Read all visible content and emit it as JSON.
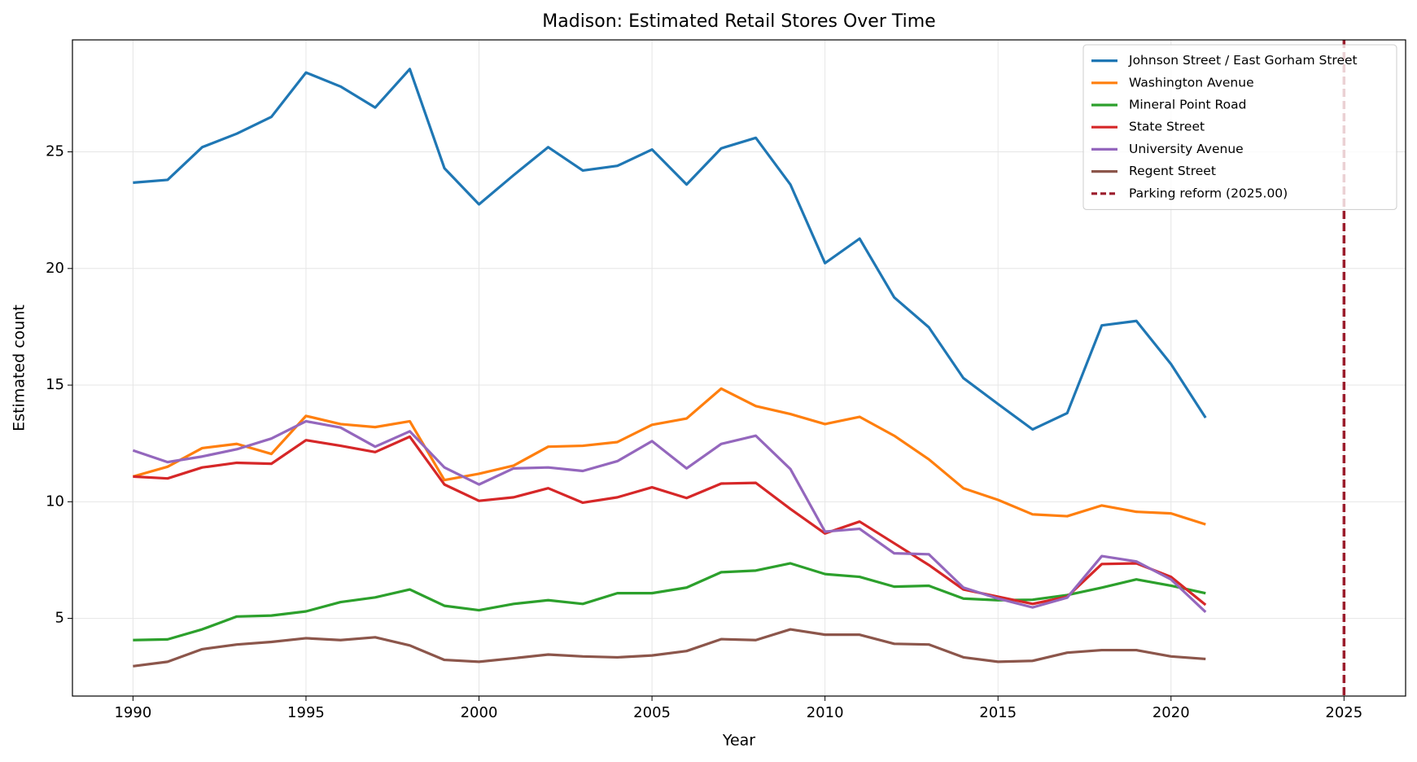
{
  "chart_data": {
    "type": "line",
    "title": "Madison: Estimated Retail Stores Over Time",
    "x_label": "Year",
    "y_label": "Estimated count",
    "x": [
      1990,
      1991,
      1992,
      1993,
      1994,
      1995,
      1996,
      1997,
      1998,
      1999,
      2000,
      2001,
      2002,
      2003,
      2004,
      2005,
      2006,
      2007,
      2008,
      2009,
      2010,
      2011,
      2012,
      2013,
      2014,
      2015,
      2016,
      2017,
      2018,
      2019,
      2020,
      2021
    ],
    "series": [
      {
        "name": "Johnson Street / East Gorham Street",
        "color": "#1f77b4",
        "values": [
          23.68,
          23.8,
          25.2,
          25.78,
          26.5,
          28.4,
          27.8,
          26.9,
          28.55,
          24.3,
          22.75,
          24.0,
          25.2,
          24.2,
          24.4,
          25.1,
          23.6,
          25.15,
          25.6,
          23.6,
          20.23,
          21.28,
          18.76,
          17.48,
          15.3,
          14.19,
          13.1,
          13.8,
          17.56,
          17.75,
          15.9,
          13.6
        ]
      },
      {
        "name": "Washington Avenue",
        "color": "#ff7f0e",
        "values": [
          11.08,
          11.5,
          12.3,
          12.48,
          12.05,
          13.68,
          13.33,
          13.2,
          13.45,
          10.93,
          11.2,
          11.55,
          12.36,
          12.4,
          12.56,
          13.3,
          13.57,
          14.85,
          14.1,
          13.76,
          13.33,
          13.64,
          12.83,
          11.82,
          10.58,
          10.08,
          9.46,
          9.38,
          9.84,
          9.57,
          9.5,
          9.03
        ]
      },
      {
        "name": "Mineral Point Road",
        "color": "#2ca02c",
        "values": [
          4.07,
          4.1,
          4.53,
          5.08,
          5.12,
          5.3,
          5.7,
          5.9,
          6.24,
          5.54,
          5.35,
          5.62,
          5.78,
          5.62,
          6.08,
          6.08,
          6.32,
          6.98,
          7.05,
          7.36,
          6.9,
          6.78,
          6.36,
          6.4,
          5.85,
          5.78,
          5.8,
          6.0,
          6.32,
          6.67,
          6.4,
          6.08
        ]
      },
      {
        "name": "State Street",
        "color": "#d62728",
        "values": [
          11.08,
          11.0,
          11.47,
          11.67,
          11.63,
          12.64,
          12.4,
          12.13,
          12.79,
          10.74,
          10.04,
          10.19,
          10.58,
          9.96,
          10.19,
          10.62,
          10.16,
          10.78,
          10.81,
          9.69,
          8.64,
          9.15,
          8.22,
          7.29,
          6.24,
          5.93,
          5.62,
          5.93,
          7.33,
          7.36,
          6.78,
          5.58
        ]
      },
      {
        "name": "University Avenue",
        "color": "#9467bd",
        "values": [
          12.2,
          11.7,
          11.94,
          12.25,
          12.71,
          13.45,
          13.18,
          12.36,
          13.02,
          11.47,
          10.74,
          11.43,
          11.47,
          11.32,
          11.74,
          12.6,
          11.43,
          12.48,
          12.83,
          11.4,
          8.72,
          8.84,
          7.79,
          7.75,
          6.32,
          5.85,
          5.47,
          5.89,
          7.67,
          7.44,
          6.67,
          5.27
        ]
      },
      {
        "name": "Regent Street",
        "color": "#8c564b",
        "values": [
          2.95,
          3.14,
          3.68,
          3.88,
          3.99,
          4.15,
          4.07,
          4.19,
          3.84,
          3.22,
          3.14,
          3.29,
          3.45,
          3.37,
          3.33,
          3.41,
          3.6,
          4.11,
          4.07,
          4.53,
          4.3,
          4.3,
          3.91,
          3.88,
          3.33,
          3.14,
          3.18,
          3.53,
          3.64,
          3.64,
          3.37,
          3.26
        ]
      }
    ],
    "vlines": [
      {
        "x": 2025,
        "name": "Parking reform (2025.00)",
        "color": "#9b1c2c"
      }
    ],
    "xlim": [
      1988.25,
      2026.78
    ],
    "ylim": [
      1.67,
      29.8
    ],
    "xticks": [
      1990,
      1995,
      2000,
      2005,
      2010,
      2015,
      2020,
      2025
    ],
    "yticks": [
      5,
      10,
      15,
      20,
      25
    ],
    "grid": true,
    "legend": "upper right"
  }
}
